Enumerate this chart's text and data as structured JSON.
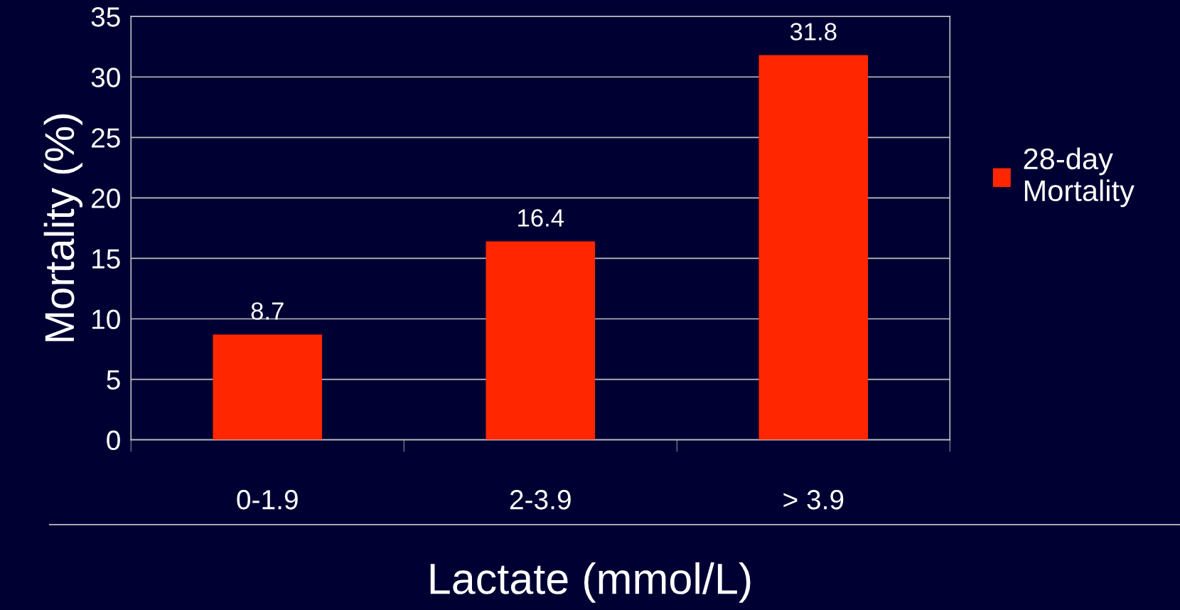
{
  "chart_data": {
    "type": "bar",
    "xlabel": "Lactate (mmol/L)",
    "ylabel": "Mortality (%)",
    "categories": [
      "0-1.9",
      "2-3.9",
      "> 3.9"
    ],
    "series": [
      {
        "name": "28-day\nMortality",
        "color": "#ff2600",
        "values": [
          8.7,
          16.4,
          31.8
        ]
      }
    ],
    "ylim": [
      0,
      35
    ],
    "yticks": [
      0,
      5,
      10,
      15,
      20,
      25,
      30,
      35
    ],
    "data_labels": true,
    "grid": "y",
    "legend": "right"
  }
}
